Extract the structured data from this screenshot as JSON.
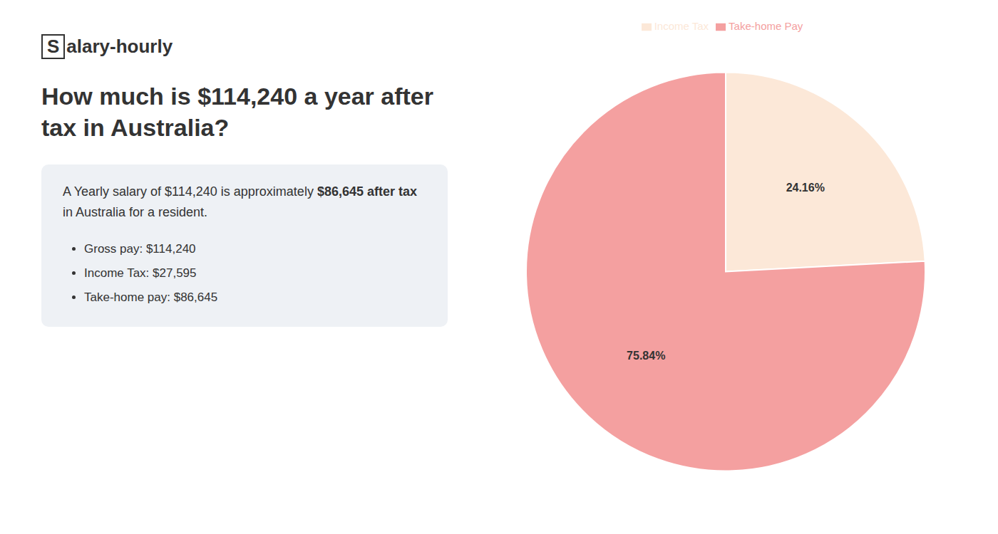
{
  "chart_data": {
    "type": "pie",
    "title": "How much is $114,240 a year after tax in Australia?",
    "annotations": [
      "S",
      "alary-hourly",
      "A Yearly salary of $114,240 is approximately ",
      "$86,645 after tax",
      "in Australia for a resident.",
      "Gross pay: $114,240",
      "Income Tax: $27,595",
      "Take-home pay: $86,645"
    ],
    "categories": [
      "Income Tax",
      "Take-home Pay"
    ],
    "values": [
      24.16,
      75.84
    ],
    "value_labels": [
      "24.16%",
      "75.84%"
    ],
    "colors": [
      "#fce8d8",
      "#f4a0a0"
    ],
    "data_labels": true,
    "legend": "top"
  }
}
